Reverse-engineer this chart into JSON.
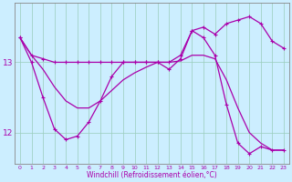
{
  "xlabel": "Windchill (Refroidissement éolien,°C)",
  "hours": [
    0,
    1,
    2,
    3,
    4,
    5,
    6,
    7,
    8,
    9,
    10,
    11,
    12,
    13,
    14,
    15,
    16,
    17,
    18,
    19,
    20,
    21,
    22,
    23
  ],
  "temp": [
    13.35,
    13.1,
    13.05,
    13.0,
    13.0,
    13.0,
    13.0,
    13.0,
    13.0,
    13.0,
    13.0,
    13.0,
    13.0,
    13.0,
    13.1,
    13.45,
    13.5,
    13.4,
    13.55,
    13.6,
    13.65,
    13.55,
    13.3,
    13.2
  ],
  "windchill": [
    13.35,
    13.0,
    12.5,
    12.05,
    11.9,
    11.95,
    12.15,
    12.45,
    12.8,
    13.0,
    13.0,
    13.0,
    13.0,
    12.9,
    13.05,
    13.45,
    13.35,
    13.1,
    12.4,
    11.85,
    11.7,
    11.8,
    11.75,
    11.75
  ],
  "interp_line": [
    13.35,
    13.1,
    12.9,
    12.65,
    12.45,
    12.35,
    12.35,
    12.45,
    12.6,
    12.75,
    12.85,
    12.93,
    13.0,
    13.0,
    13.02,
    13.1,
    13.1,
    13.05,
    12.75,
    12.35,
    12.0,
    11.85,
    11.75,
    11.75
  ],
  "ylim_min": 11.55,
  "ylim_max": 13.85,
  "yticks": [
    12,
    13
  ],
  "xtick_labels": [
    "0",
    "1",
    "2",
    "3",
    "4",
    "5",
    "6",
    "7",
    "8",
    "9",
    "10",
    "11",
    "12",
    "13",
    "14",
    "15",
    "16",
    "17",
    "18",
    "19",
    "20",
    "21",
    "22",
    "23"
  ],
  "line_color": "#aa00aa",
  "bg_color": "#cceeff",
  "grid_color": "#99ccbb",
  "markersize": 3,
  "linewidth": 0.9,
  "tick_fontsize": 4.5,
  "xlabel_fontsize": 5.5
}
